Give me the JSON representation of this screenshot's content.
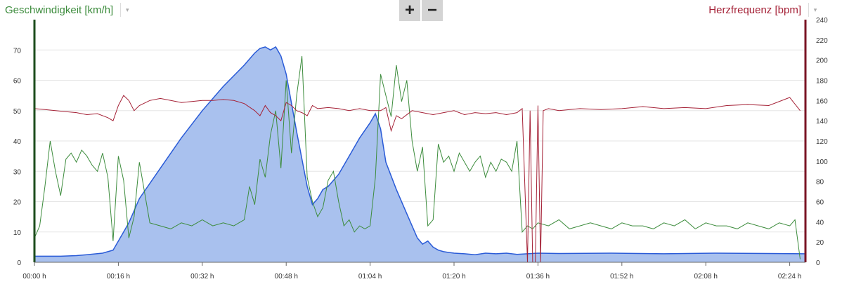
{
  "header": {
    "left_axis_title": "Geschwindigkeit [km/h]",
    "right_axis_title": "Herzfrequenz [bpm]",
    "zoom_in_label": "+",
    "zoom_out_label": "−",
    "dropdown_glyph": "▾"
  },
  "icons": {
    "left_dropdown": "chevron-down-icon",
    "right_dropdown": "chevron-down-icon",
    "zoom_in": "plus-icon",
    "zoom_out": "minus-icon"
  },
  "colors": {
    "speed": "#3d8c3d",
    "heart_rate": "#a52237",
    "elevation_fill": "#a9c1ee",
    "elevation_line": "#2a5bd7",
    "grid": "#e6e6e6"
  },
  "chart_data": {
    "type": "line",
    "x_unit": "minutes",
    "x_ticks": [
      {
        "label": "00:00 h",
        "value": 0
      },
      {
        "label": "00:16 h",
        "value": 16
      },
      {
        "label": "00:32 h",
        "value": 32
      },
      {
        "label": "00:48 h",
        "value": 48
      },
      {
        "label": "01:04 h",
        "value": 64
      },
      {
        "label": "01:20 h",
        "value": 80
      },
      {
        "label": "01:36 h",
        "value": 96
      },
      {
        "label": "01:52 h",
        "value": 112
      },
      {
        "label": "02:08 h",
        "value": 128
      },
      {
        "label": "02:24 h",
        "value": 144
      }
    ],
    "xlim": [
      0,
      147
    ],
    "y_left": {
      "label": "Geschwindigkeit [km/h]",
      "ylim": [
        0,
        80
      ],
      "ticks": [
        0,
        10,
        20,
        30,
        40,
        50,
        60,
        70
      ]
    },
    "y_right": {
      "label": "Herzfrequenz [bpm]",
      "ylim": [
        0,
        240
      ],
      "ticks": [
        0,
        20,
        40,
        60,
        80,
        100,
        120,
        140,
        160,
        180,
        200,
        220,
        240
      ]
    },
    "grid": true,
    "series": [
      {
        "axis": "left",
        "kind": "area",
        "x": [
          0,
          5,
          8,
          10,
          13,
          15,
          16,
          17,
          18,
          19,
          20,
          24,
          28,
          32,
          36,
          40,
          42,
          43,
          44,
          45,
          46,
          47,
          48,
          50,
          52,
          53,
          54,
          55,
          56,
          57,
          58,
          60,
          62,
          64,
          65,
          66,
          67,
          69,
          71,
          73,
          74,
          75,
          76,
          77,
          78,
          80,
          82,
          84,
          86,
          88,
          90,
          92,
          94,
          96,
          100,
          110,
          120,
          130,
          140,
          147
        ],
        "values": [
          2,
          2,
          2.2,
          2.5,
          3,
          4,
          7,
          10,
          13,
          17,
          21,
          31,
          41,
          50,
          58,
          65,
          69,
          70.5,
          71,
          70,
          71,
          68,
          62,
          43,
          25,
          19,
          21,
          24,
          25,
          27,
          29,
          35,
          41,
          46,
          49,
          44,
          33,
          24,
          16,
          8,
          6,
          7,
          5,
          4,
          3.5,
          3,
          2.8,
          2.5,
          3,
          2.8,
          3,
          2.6,
          2.8,
          3,
          2.9,
          3,
          2.8,
          3,
          2.9,
          2.8
        ]
      },
      {
        "axis": "left",
        "kind": "line",
        "x": [
          0,
          1,
          2,
          3,
          4,
          5,
          6,
          7,
          8,
          9,
          10,
          11,
          12,
          13,
          14,
          15,
          16,
          17,
          18,
          19,
          20,
          22,
          24,
          26,
          28,
          30,
          32,
          34,
          36,
          38,
          40,
          41,
          42,
          43,
          44,
          45,
          46,
          47,
          48,
          49,
          50,
          51,
          52,
          53,
          54,
          55,
          56,
          57,
          58,
          59,
          60,
          61,
          62,
          63,
          64,
          65,
          66,
          67,
          68,
          69,
          70,
          71,
          72,
          73,
          74,
          75,
          76,
          77,
          78,
          79,
          80,
          81,
          82,
          83,
          84,
          85,
          86,
          87,
          88,
          89,
          90,
          91,
          92,
          93,
          94,
          95,
          96,
          98,
          100,
          102,
          104,
          106,
          108,
          110,
          112,
          114,
          116,
          118,
          120,
          122,
          124,
          126,
          128,
          130,
          132,
          134,
          136,
          138,
          140,
          142,
          144,
          145,
          146
        ],
        "values": [
          8,
          12,
          25,
          40,
          30,
          22,
          34,
          36,
          33,
          37,
          35,
          32,
          30,
          36,
          28,
          7,
          35,
          27,
          8,
          15,
          33,
          13,
          12,
          11,
          13,
          12,
          14,
          12,
          13,
          12,
          14,
          25,
          19,
          34,
          28,
          42,
          50,
          31,
          60,
          36,
          55,
          68,
          28,
          20,
          15,
          18,
          27,
          30,
          20,
          12,
          14,
          10,
          12,
          11,
          12,
          28,
          62,
          55,
          48,
          65,
          53,
          60,
          40,
          30,
          38,
          12,
          14,
          39,
          33,
          35,
          30,
          36,
          33,
          30,
          33,
          35,
          28,
          33,
          30,
          34,
          33,
          30,
          40,
          10,
          12,
          11,
          13,
          12,
          14,
          11,
          12,
          13,
          12,
          11,
          13,
          12,
          12,
          11,
          13,
          12,
          14,
          11,
          13,
          12,
          12,
          11,
          13,
          12,
          11,
          13,
          12,
          14,
          1
        ]
      },
      {
        "axis": "right",
        "kind": "line",
        "x": [
          0,
          2,
          4,
          6,
          8,
          10,
          12,
          14,
          15,
          16,
          17,
          18,
          19,
          20,
          22,
          24,
          26,
          28,
          30,
          32,
          34,
          36,
          38,
          40,
          42,
          43,
          44,
          45,
          46,
          47,
          48,
          49,
          50,
          51,
          52,
          53,
          54,
          56,
          58,
          60,
          62,
          64,
          66,
          67,
          68,
          69,
          70,
          72,
          74,
          76,
          78,
          80,
          82,
          84,
          86,
          88,
          90,
          92,
          93,
          94,
          94.5,
          95,
          95.5,
          96,
          96.5,
          97,
          98,
          100,
          104,
          108,
          112,
          116,
          120,
          124,
          128,
          132,
          136,
          140,
          144,
          146
        ],
        "values": [
          152,
          151,
          150,
          149,
          148,
          146,
          147,
          143,
          140,
          155,
          165,
          160,
          150,
          155,
          160,
          162,
          160,
          158,
          159,
          160,
          160,
          161,
          160,
          157,
          150,
          145,
          155,
          148,
          145,
          140,
          158,
          155,
          150,
          148,
          145,
          155,
          152,
          153,
          152,
          150,
          152,
          150,
          150,
          153,
          130,
          145,
          142,
          150,
          148,
          146,
          148,
          150,
          146,
          148,
          147,
          148,
          146,
          148,
          152,
          0,
          150,
          0,
          0,
          155,
          0,
          150,
          152,
          150,
          152,
          151,
          152,
          154,
          152,
          153,
          152,
          155,
          156,
          155,
          163,
          150
        ]
      }
    ]
  }
}
